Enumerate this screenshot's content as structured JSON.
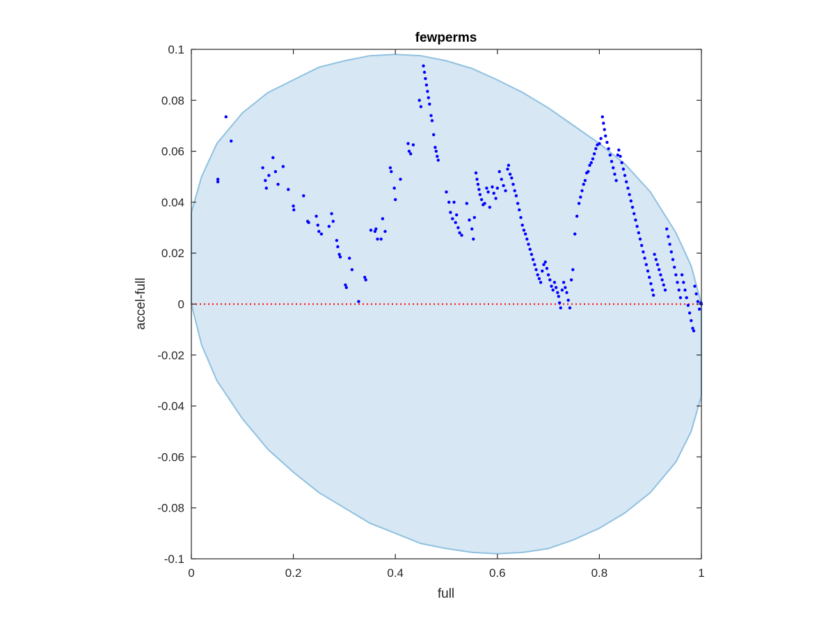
{
  "chart_data": {
    "type": "scatter",
    "title": "fewperms",
    "xlabel": "full",
    "ylabel": "accel-full",
    "xlim": [
      0,
      1
    ],
    "ylim": [
      -0.1,
      0.1
    ],
    "xticks": [
      "0",
      "0.2",
      "0.4",
      "0.6",
      "0.8",
      "1"
    ],
    "yticks": [
      "-0.1",
      "-0.08",
      "-0.06",
      "-0.04",
      "-0.02",
      "0",
      "0.02",
      "0.04",
      "0.06",
      "0.08",
      "0.1"
    ],
    "grid": false,
    "reference_line": {
      "y": 0,
      "style": "dotted",
      "color": "#ff0000"
    },
    "envelope": {
      "fill": "#d7e7f3",
      "stroke": "#8fc1e0",
      "upper": [
        [
          0,
          0.036
        ],
        [
          0.02,
          0.05
        ],
        [
          0.05,
          0.063
        ],
        [
          0.1,
          0.075
        ],
        [
          0.15,
          0.083
        ],
        [
          0.2,
          0.088
        ],
        [
          0.25,
          0.093
        ],
        [
          0.3,
          0.0955
        ],
        [
          0.35,
          0.0975
        ],
        [
          0.4,
          0.098
        ],
        [
          0.45,
          0.0975
        ],
        [
          0.5,
          0.0955
        ],
        [
          0.55,
          0.0925
        ],
        [
          0.6,
          0.088
        ],
        [
          0.65,
          0.083
        ],
        [
          0.7,
          0.077
        ],
        [
          0.75,
          0.07
        ],
        [
          0.8,
          0.063
        ],
        [
          0.85,
          0.055
        ],
        [
          0.9,
          0.044
        ],
        [
          0.95,
          0.028
        ],
        [
          0.98,
          0.015
        ],
        [
          1.0,
          0.0
        ]
      ],
      "lower": [
        [
          0,
          0.0
        ],
        [
          0.02,
          -0.016
        ],
        [
          0.05,
          -0.03
        ],
        [
          0.1,
          -0.045
        ],
        [
          0.15,
          -0.057
        ],
        [
          0.2,
          -0.066
        ],
        [
          0.25,
          -0.074
        ],
        [
          0.3,
          -0.08
        ],
        [
          0.35,
          -0.086
        ],
        [
          0.4,
          -0.09
        ],
        [
          0.45,
          -0.094
        ],
        [
          0.5,
          -0.096
        ],
        [
          0.55,
          -0.0975
        ],
        [
          0.6,
          -0.098
        ],
        [
          0.65,
          -0.0975
        ],
        [
          0.7,
          -0.096
        ],
        [
          0.75,
          -0.0925
        ],
        [
          0.8,
          -0.088
        ],
        [
          0.85,
          -0.082
        ],
        [
          0.9,
          -0.074
        ],
        [
          0.95,
          -0.062
        ],
        [
          0.98,
          -0.05
        ],
        [
          1.0,
          -0.036
        ]
      ]
    },
    "series": [
      {
        "color": "#0000ff",
        "points": [
          [
            0.052,
            0.049
          ],
          [
            0.052,
            0.048
          ],
          [
            0.068,
            0.0735
          ],
          [
            0.078,
            0.064
          ],
          [
            0.14,
            0.0535
          ],
          [
            0.145,
            0.0485
          ],
          [
            0.147,
            0.0455
          ],
          [
            0.152,
            0.0505
          ],
          [
            0.16,
            0.0575
          ],
          [
            0.165,
            0.052
          ],
          [
            0.17,
            0.047
          ],
          [
            0.18,
            0.054
          ],
          [
            0.19,
            0.045
          ],
          [
            0.2,
            0.0385
          ],
          [
            0.201,
            0.037
          ],
          [
            0.22,
            0.0425
          ],
          [
            0.228,
            0.0325
          ],
          [
            0.23,
            0.032
          ],
          [
            0.245,
            0.0345
          ],
          [
            0.248,
            0.031
          ],
          [
            0.25,
            0.0285
          ],
          [
            0.255,
            0.0275
          ],
          [
            0.27,
            0.0305
          ],
          [
            0.275,
            0.0355
          ],
          [
            0.278,
            0.0325
          ],
          [
            0.285,
            0.025
          ],
          [
            0.287,
            0.0225
          ],
          [
            0.29,
            0.0195
          ],
          [
            0.292,
            0.0185
          ],
          [
            0.302,
            0.0075
          ],
          [
            0.304,
            0.0065
          ],
          [
            0.31,
            0.018
          ],
          [
            0.315,
            0.0135
          ],
          [
            0.328,
            0.001
          ],
          [
            0.34,
            0.0105
          ],
          [
            0.342,
            0.0095
          ],
          [
            0.352,
            0.029
          ],
          [
            0.36,
            0.0285
          ],
          [
            0.362,
            0.0295
          ],
          [
            0.365,
            0.0255
          ],
          [
            0.372,
            0.0255
          ],
          [
            0.375,
            0.0335
          ],
          [
            0.38,
            0.0285
          ],
          [
            0.39,
            0.0535
          ],
          [
            0.392,
            0.052
          ],
          [
            0.398,
            0.0455
          ],
          [
            0.4,
            0.041
          ],
          [
            0.41,
            0.049
          ],
          [
            0.425,
            0.063
          ],
          [
            0.427,
            0.06
          ],
          [
            0.43,
            0.059
          ],
          [
            0.435,
            0.0625
          ],
          [
            0.447,
            0.08
          ],
          [
            0.45,
            0.0775
          ],
          [
            0.455,
            0.0935
          ],
          [
            0.457,
            0.091
          ],
          [
            0.459,
            0.0885
          ],
          [
            0.461,
            0.086
          ],
          [
            0.463,
            0.0835
          ],
          [
            0.465,
            0.081
          ],
          [
            0.467,
            0.0785
          ],
          [
            0.47,
            0.074
          ],
          [
            0.472,
            0.072
          ],
          [
            0.475,
            0.0665
          ],
          [
            0.478,
            0.0615
          ],
          [
            0.48,
            0.06
          ],
          [
            0.482,
            0.058
          ],
          [
            0.484,
            0.0565
          ],
          [
            0.5,
            0.044
          ],
          [
            0.505,
            0.04
          ],
          [
            0.508,
            0.036
          ],
          [
            0.512,
            0.0335
          ],
          [
            0.515,
            0.04
          ],
          [
            0.518,
            0.032
          ],
          [
            0.52,
            0.035
          ],
          [
            0.523,
            0.03
          ],
          [
            0.526,
            0.028
          ],
          [
            0.53,
            0.027
          ],
          [
            0.54,
            0.0395
          ],
          [
            0.545,
            0.033
          ],
          [
            0.55,
            0.0295
          ],
          [
            0.553,
            0.0255
          ],
          [
            0.555,
            0.034
          ],
          [
            0.558,
            0.0515
          ],
          [
            0.56,
            0.049
          ],
          [
            0.562,
            0.047
          ],
          [
            0.564,
            0.045
          ],
          [
            0.566,
            0.043
          ],
          [
            0.569,
            0.041
          ],
          [
            0.572,
            0.039
          ],
          [
            0.575,
            0.0395
          ],
          [
            0.579,
            0.0455
          ],
          [
            0.582,
            0.044
          ],
          [
            0.585,
            0.038
          ],
          [
            0.59,
            0.046
          ],
          [
            0.593,
            0.0435
          ],
          [
            0.597,
            0.0415
          ],
          [
            0.6,
            0.0455
          ],
          [
            0.604,
            0.052
          ],
          [
            0.608,
            0.049
          ],
          [
            0.612,
            0.0465
          ],
          [
            0.616,
            0.0445
          ],
          [
            0.62,
            0.053
          ],
          [
            0.622,
            0.0545
          ],
          [
            0.625,
            0.051
          ],
          [
            0.628,
            0.0495
          ],
          [
            0.631,
            0.047
          ],
          [
            0.634,
            0.0445
          ],
          [
            0.637,
            0.0425
          ],
          [
            0.64,
            0.0395
          ],
          [
            0.643,
            0.037
          ],
          [
            0.646,
            0.034
          ],
          [
            0.649,
            0.031
          ],
          [
            0.652,
            0.029
          ],
          [
            0.655,
            0.0275
          ],
          [
            0.658,
            0.0255
          ],
          [
            0.661,
            0.0235
          ],
          [
            0.664,
            0.0215
          ],
          [
            0.667,
            0.0195
          ],
          [
            0.67,
            0.0175
          ],
          [
            0.673,
            0.0155
          ],
          [
            0.676,
            0.0135
          ],
          [
            0.679,
            0.0115
          ],
          [
            0.682,
            0.01
          ],
          [
            0.685,
            0.0085
          ],
          [
            0.688,
            0.013
          ],
          [
            0.691,
            0.0155
          ],
          [
            0.694,
            0.0165
          ],
          [
            0.697,
            0.014
          ],
          [
            0.7,
            0.0115
          ],
          [
            0.703,
            0.0095
          ],
          [
            0.706,
            0.007
          ],
          [
            0.709,
            0.0055
          ],
          [
            0.712,
            0.0085
          ],
          [
            0.715,
            0.0065
          ],
          [
            0.718,
            0.0045
          ],
          [
            0.72,
            0.003
          ],
          [
            0.722,
            0.0005
          ],
          [
            0.724,
            -0.0015
          ],
          [
            0.727,
            0.0055
          ],
          [
            0.73,
            0.0085
          ],
          [
            0.733,
            0.0065
          ],
          [
            0.736,
            0.0045
          ],
          [
            0.739,
            0.0015
          ],
          [
            0.742,
            -0.0015
          ],
          [
            0.745,
            0.0095
          ],
          [
            0.748,
            0.0135
          ],
          [
            0.752,
            0.0275
          ],
          [
            0.756,
            0.0345
          ],
          [
            0.76,
            0.0395
          ],
          [
            0.763,
            0.042
          ],
          [
            0.766,
            0.0445
          ],
          [
            0.769,
            0.047
          ],
          [
            0.772,
            0.0485
          ],
          [
            0.775,
            0.0515
          ],
          [
            0.778,
            0.052
          ],
          [
            0.781,
            0.0545
          ],
          [
            0.784,
            0.0555
          ],
          [
            0.787,
            0.057
          ],
          [
            0.79,
            0.059
          ],
          [
            0.793,
            0.061
          ],
          [
            0.796,
            0.0625
          ],
          [
            0.8,
            0.063
          ],
          [
            0.803,
            0.065
          ],
          [
            0.806,
            0.0735
          ],
          [
            0.808,
            0.071
          ],
          [
            0.81,
            0.0685
          ],
          [
            0.812,
            0.066
          ],
          [
            0.815,
            0.0635
          ],
          [
            0.818,
            0.061
          ],
          [
            0.821,
            0.0585
          ],
          [
            0.824,
            0.056
          ],
          [
            0.827,
            0.0535
          ],
          [
            0.83,
            0.051
          ],
          [
            0.833,
            0.0485
          ],
          [
            0.836,
            0.0585
          ],
          [
            0.838,
            0.0605
          ],
          [
            0.841,
            0.058
          ],
          [
            0.844,
            0.0555
          ],
          [
            0.847,
            0.053
          ],
          [
            0.85,
            0.0505
          ],
          [
            0.853,
            0.048
          ],
          [
            0.856,
            0.0455
          ],
          [
            0.859,
            0.043
          ],
          [
            0.862,
            0.0405
          ],
          [
            0.865,
            0.038
          ],
          [
            0.868,
            0.0355
          ],
          [
            0.871,
            0.033
          ],
          [
            0.874,
            0.0305
          ],
          [
            0.877,
            0.028
          ],
          [
            0.88,
            0.0255
          ],
          [
            0.883,
            0.023
          ],
          [
            0.886,
            0.0205
          ],
          [
            0.889,
            0.018
          ],
          [
            0.892,
            0.0155
          ],
          [
            0.895,
            0.013
          ],
          [
            0.898,
            0.0105
          ],
          [
            0.901,
            0.008
          ],
          [
            0.904,
            0.0055
          ],
          [
            0.906,
            0.0035
          ],
          [
            0.908,
            0.0195
          ],
          [
            0.911,
            0.0175
          ],
          [
            0.914,
            0.0155
          ],
          [
            0.917,
            0.0135
          ],
          [
            0.92,
            0.0115
          ],
          [
            0.923,
            0.0095
          ],
          [
            0.926,
            0.0075
          ],
          [
            0.929,
            0.0055
          ],
          [
            0.932,
            0.0295
          ],
          [
            0.935,
            0.0265
          ],
          [
            0.938,
            0.0235
          ],
          [
            0.941,
            0.0205
          ],
          [
            0.944,
            0.0175
          ],
          [
            0.947,
            0.0145
          ],
          [
            0.95,
            0.0115
          ],
          [
            0.953,
            0.0085
          ],
          [
            0.956,
            0.0055
          ],
          [
            0.959,
            0.0025
          ],
          [
            0.962,
            0.0115
          ],
          [
            0.965,
            0.0085
          ],
          [
            0.968,
            0.0055
          ],
          [
            0.971,
            0.0025
          ],
          [
            0.974,
            -0.0005
          ],
          [
            0.977,
            -0.0035
          ],
          [
            0.98,
            -0.0065
          ],
          [
            0.983,
            -0.0095
          ],
          [
            0.985,
            -0.0105
          ],
          [
            0.987,
            0.007
          ],
          [
            0.99,
            0.004
          ],
          [
            0.993,
            0.001
          ],
          [
            0.996,
            -0.002
          ],
          [
            0.999,
            0.0005
          ],
          [
            1.0,
            0.0
          ]
        ]
      }
    ]
  }
}
